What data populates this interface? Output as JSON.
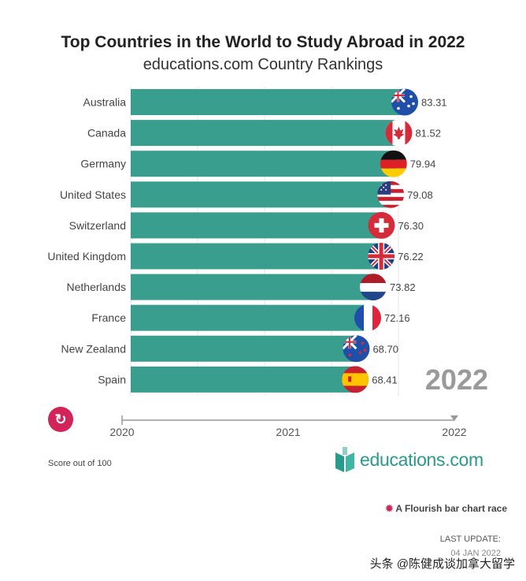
{
  "title": "Top Countries in the World to Study Abroad in 2022",
  "subtitle": "educations.com Country Rankings",
  "chart_data": {
    "type": "bar",
    "orientation": "horizontal",
    "categories": [
      "Australia",
      "Canada",
      "Germany",
      "United States",
      "Switzerland",
      "United Kingdom",
      "Netherlands",
      "France",
      "New Zealand",
      "Spain"
    ],
    "values": [
      83.31,
      81.52,
      79.94,
      79.08,
      76.3,
      76.22,
      73.82,
      72.16,
      68.7,
      68.41
    ],
    "value_labels": [
      "83.31",
      "81.52",
      "79.94",
      "79.08",
      "76.30",
      "76.22",
      "73.82",
      "72.16",
      "68.70",
      "68.41"
    ],
    "icons": [
      "flag-australia-icon",
      "flag-canada-icon",
      "flag-germany-icon",
      "flag-united-states-icon",
      "flag-switzerland-icon",
      "flag-united-kingdom-icon",
      "flag-netherlands-icon",
      "flag-france-icon",
      "flag-new-zealand-icon",
      "flag-spain-icon"
    ],
    "bar_color": "#3a9e8f",
    "current_year": "2022",
    "timeline": {
      "ticks": [
        "2020",
        "2021",
        "2022"
      ],
      "range": [
        2020,
        2022
      ],
      "current": 2022
    },
    "grid": true,
    "legend": "none"
  },
  "replay_icon": "replay-icon",
  "score_note": "Score out of 100",
  "brand": {
    "logo_icon": "educations-book-icon",
    "text": "educations.com",
    "color": "#2a9a8c"
  },
  "flourish_credit": "A Flourish bar chart race",
  "last_update_label": "LAST UPDATE:",
  "last_update_date": "04 JAN 2022",
  "watermark": "头条 @陈健成谈加拿大留学"
}
